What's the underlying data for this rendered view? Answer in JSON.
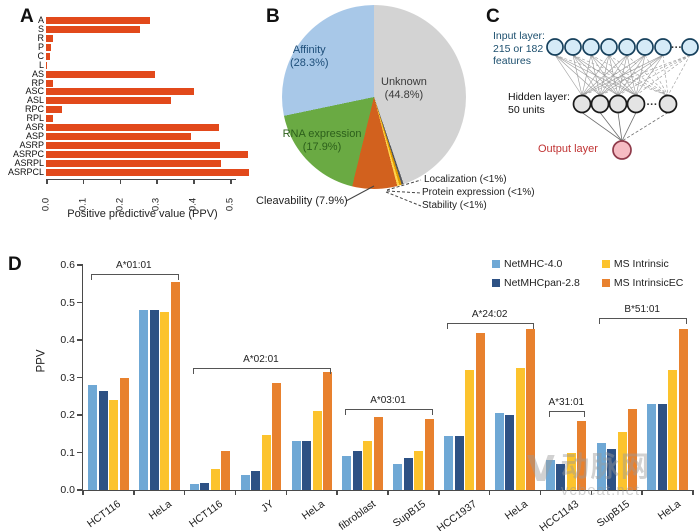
{
  "panels": {
    "a": "A",
    "b": "B",
    "c": "C",
    "d": "D"
  },
  "chart_data": [
    {
      "id": "panel-a",
      "type": "bar",
      "orientation": "horizontal",
      "title": "",
      "xlabel": "Positive predictive value (PPV)",
      "ylabel": "",
      "xlim": [
        0,
        0.57
      ],
      "xticks": [
        "0.0",
        "0.1",
        "0.2",
        "0.3",
        "0.4",
        "0.5"
      ],
      "bar_color": "#e2491b",
      "categories": [
        "A",
        "S",
        "R",
        "P",
        "C",
        "L",
        "AS",
        "RP",
        "ASC",
        "ASL",
        "RPC",
        "RPL",
        "ASR",
        "ASP",
        "ASRP",
        "ASRPC",
        "ASRPL",
        "ASRPCL"
      ],
      "values": [
        0.283,
        0.255,
        0.018,
        0.013,
        0.012,
        0.004,
        0.295,
        0.02,
        0.402,
        0.34,
        0.043,
        0.02,
        0.47,
        0.395,
        0.472,
        0.55,
        0.475,
        0.552
      ]
    },
    {
      "id": "panel-b",
      "type": "pie",
      "start_angle_deg": 0,
      "direction": "clockwise",
      "slices": [
        {
          "name": "Unknown",
          "pct": "(44.8%)",
          "value": 44.8,
          "color": "#d3d3d3",
          "label_color": "#3a3a3a"
        },
        {
          "name": "Localization",
          "pct": "(<1%)",
          "value": 0.35,
          "color": "#54565c",
          "label_color": "#222222"
        },
        {
          "name": "Protein expression",
          "pct": "(<1%)",
          "value": 0.4,
          "color": "#e09c00",
          "label_color": "#222222"
        },
        {
          "name": "Stability",
          "pct": "(<1%)",
          "value": 0.4,
          "color": "#ffd34d",
          "label_color": "#222222"
        },
        {
          "name": "Cleavability",
          "pct": "(7.9%)",
          "value": 7.9,
          "color": "#d2611e",
          "label_color": "#222222"
        },
        {
          "name": "RNA expression",
          "pct": "(17.9%)",
          "value": 17.9,
          "color": "#6aaa43",
          "label_color": "#2c5f1b"
        },
        {
          "name": "Affinity",
          "pct": "(28.3%)",
          "value": 28.3,
          "color": "#a8c8e8",
          "label_color": "#1d4e79"
        }
      ]
    },
    {
      "id": "panel-d",
      "type": "grouped_bar",
      "ylabel": "PPV",
      "ylim": [
        0,
        0.6
      ],
      "yticks": [
        "0.0",
        "0.1",
        "0.2",
        "0.3",
        "0.4",
        "0.5",
        "0.6"
      ],
      "categories": [
        "HCT116",
        "HeLa",
        "HCT116",
        "JY",
        "HeLa",
        "fibroblast",
        "SupB15",
        "HCC1937",
        "HeLa",
        "HCC1143",
        "SupB15",
        "HeLa"
      ],
      "series": [
        {
          "name": "NetMHC-4.0",
          "color": "#6fa8d5",
          "values": [
            0.28,
            0.48,
            0.015,
            0.04,
            0.13,
            0.09,
            0.07,
            0.145,
            0.205,
            0.08,
            0.125,
            0.23
          ]
        },
        {
          "name": "NetMHCpan-2.8",
          "color": "#2d5184",
          "values": [
            0.265,
            0.48,
            0.02,
            0.05,
            0.13,
            0.105,
            0.085,
            0.145,
            0.2,
            0.07,
            0.11,
            0.23
          ]
        },
        {
          "name": "MS Intrinsic",
          "color": "#fcc32d",
          "values": [
            0.24,
            0.475,
            0.055,
            0.148,
            0.21,
            0.13,
            0.105,
            0.32,
            0.325,
            0.1,
            0.155,
            0.32
          ]
        },
        {
          "name": "MS IntrinsicEC",
          "color": "#e8812e",
          "values": [
            0.3,
            0.555,
            0.105,
            0.285,
            0.315,
            0.195,
            0.19,
            0.42,
            0.43,
            0.185,
            0.215,
            0.43
          ]
        }
      ],
      "annotations": [
        {
          "label": "A*01:01",
          "from": 0,
          "to": 1,
          "y": 0.575
        },
        {
          "label": "A*02:01",
          "from": 2,
          "to": 4,
          "y": 0.325
        },
        {
          "label": "A*03:01",
          "from": 5,
          "to": 6,
          "y": 0.215
        },
        {
          "label": "A*24:02",
          "from": 7,
          "to": 8,
          "y": 0.445
        },
        {
          "label": "A*31:01",
          "from": 9,
          "to": 9,
          "y": 0.21
        },
        {
          "label": "B*51:01",
          "from": 10,
          "to": 11,
          "y": 0.46
        }
      ],
      "legend_position": "top-right"
    }
  ],
  "panel_c": {
    "input_label_lines": [
      "Input layer:",
      "215 or 182",
      "features"
    ],
    "hidden_label_lines": [
      "Hidden layer:",
      "50 units"
    ],
    "output_label": "Output layer",
    "input_nodes_shown": 8,
    "hidden_nodes_shown": 5,
    "ellipsis": "···",
    "input_fill": "#d6ebf7",
    "input_stroke": "#16405c",
    "hidden_fill": "#e4e4e4",
    "hidden_stroke": "#1a1a1a",
    "output_fill": "#f6bcc3",
    "output_stroke": "#8f3a4a",
    "input_label_color": "#1c4f6e",
    "hidden_label_color": "#111111",
    "output_label_color": "#c13434",
    "edge_color": "#9a9a9a"
  },
  "watermark": {
    "logo": "V",
    "text_cn": "动脉网",
    "text_en": "vcbeat.net"
  }
}
